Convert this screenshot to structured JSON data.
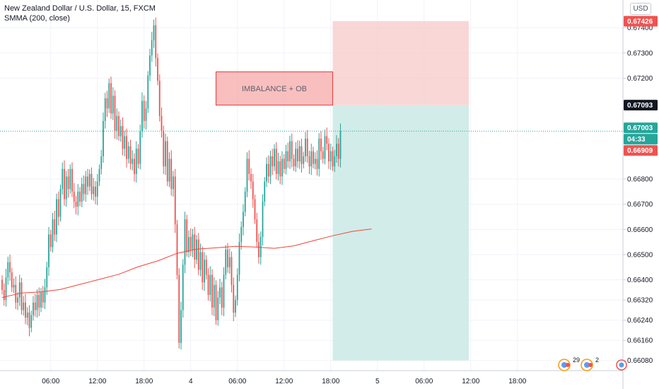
{
  "legend": {
    "symbol_line": "New Zealand Dollar / U.S. Dollar, 15, FXCM",
    "indicator_line": "SMMA (200, close)"
  },
  "unit_button": "USD",
  "colors": {
    "up": "#26a69a",
    "down": "#ef5350",
    "smma": "#f44336",
    "stop_zone": "#f7c9c9",
    "target_zone": "#cdeae7",
    "imbalance_fill": "#f7a9a9",
    "imbalance_border": "#e53935",
    "grid": "#f0f3fa",
    "price_line": "#26a69a"
  },
  "events": [
    {
      "name": "events-group-icon",
      "count": "29"
    },
    {
      "name": "dividend-icon",
      "count": "2"
    }
  ],
  "chart_data": {
    "type": "candlestick",
    "title": "New Zealand Dollar / U.S. Dollar, 15, FXCM",
    "timeframe": "15",
    "ylim": [
      0.6604,
      0.6751
    ],
    "y_ticks": [
      "0.66080",
      "0.66160",
      "0.66240",
      "0.66320",
      "0.66400",
      "0.66500",
      "0.66600",
      "0.66700",
      "0.66800",
      "0.67200",
      "0.67300",
      "0.67400"
    ],
    "x_ticks": [
      "06:00",
      "12:00",
      "18:00",
      "4",
      "06:00",
      "12:00",
      "18:00",
      "5",
      "06:00",
      "12:00",
      "18:00"
    ],
    "x_tick_bar_index": [
      25,
      49,
      73,
      97,
      121,
      145,
      169,
      193,
      217,
      241,
      265
    ],
    "series_close": [
      0.6636,
      0.6632,
      0.6641,
      0.6647,
      0.6643,
      0.6637,
      0.6638,
      0.6631,
      0.6633,
      0.6639,
      0.6628,
      0.6631,
      0.6625,
      0.6627,
      0.6621,
      0.6626,
      0.6631,
      0.6628,
      0.6634,
      0.6629,
      0.6635,
      0.6631,
      0.6637,
      0.6645,
      0.6658,
      0.6653,
      0.6664,
      0.6658,
      0.6672,
      0.6665,
      0.6676,
      0.6684,
      0.6672,
      0.6681,
      0.6676,
      0.6684,
      0.6675,
      0.6671,
      0.6669,
      0.6675,
      0.6671,
      0.6678,
      0.6674,
      0.6681,
      0.6677,
      0.6682,
      0.6674,
      0.6677,
      0.6673,
      0.6679,
      0.6684,
      0.6689,
      0.6703,
      0.6712,
      0.6708,
      0.6718,
      0.6706,
      0.6713,
      0.6699,
      0.6705,
      0.6697,
      0.6701,
      0.6692,
      0.6697,
      0.6688,
      0.6693,
      0.6686,
      0.6688,
      0.6682,
      0.6692,
      0.6686,
      0.6699,
      0.6711,
      0.6703,
      0.6708,
      0.6721,
      0.6729,
      0.6735,
      0.6741,
      0.6728,
      0.6719,
      0.6705,
      0.6699,
      0.6685,
      0.6695,
      0.6679,
      0.6688,
      0.6676,
      0.6681,
      0.6662,
      0.6642,
      0.6615,
      0.6628,
      0.6646,
      0.6664,
      0.6651,
      0.6657,
      0.6652,
      0.6658,
      0.6648,
      0.6656,
      0.6644,
      0.6651,
      0.6639,
      0.6648,
      0.6642,
      0.6634,
      0.6642,
      0.6629,
      0.6638,
      0.6624,
      0.6633,
      0.6637,
      0.6629,
      0.6642,
      0.6652,
      0.6645,
      0.6649,
      0.6638,
      0.6627,
      0.6632,
      0.6642,
      0.6655,
      0.6661,
      0.6667,
      0.6675,
      0.6688,
      0.6682,
      0.6679,
      0.6672,
      0.6664,
      0.6655,
      0.6649,
      0.6657,
      0.6671,
      0.6679,
      0.6686,
      0.6681,
      0.6689,
      0.6685,
      0.6692,
      0.6682,
      0.6687,
      0.6681,
      0.6688,
      0.6684,
      0.6691,
      0.6687,
      0.6695,
      0.6688,
      0.6685,
      0.6692,
      0.6687,
      0.6693,
      0.6686,
      0.6689,
      0.6696,
      0.6689,
      0.6685,
      0.6691,
      0.6686,
      0.6688,
      0.6684,
      0.6696,
      0.6691,
      0.6688,
      0.6697,
      0.6694,
      0.6687,
      0.6691,
      0.6685,
      0.6689,
      0.6694,
      0.6688,
      0.6699
    ],
    "series_open_first": 0.664,
    "smma": {
      "name": "SMMA (200, close)",
      "points": [
        [
          0,
          0.6633
        ],
        [
          10,
          0.66348
        ],
        [
          20,
          0.66352
        ],
        [
          30,
          0.66362
        ],
        [
          40,
          0.66382
        ],
        [
          50,
          0.66402
        ],
        [
          60,
          0.66422
        ],
        [
          70,
          0.66452
        ],
        [
          80,
          0.66475
        ],
        [
          90,
          0.66505
        ],
        [
          100,
          0.66522
        ],
        [
          110,
          0.66527
        ],
        [
          120,
          0.66533
        ],
        [
          130,
          0.6653
        ],
        [
          140,
          0.66525
        ],
        [
          150,
          0.66535
        ],
        [
          160,
          0.66555
        ],
        [
          170,
          0.66575
        ],
        [
          180,
          0.66592
        ],
        [
          190,
          0.66602
        ]
      ]
    },
    "imbalance_zone": {
      "label": "IMBALANCE + OB",
      "top": 0.67225,
      "bottom": 0.67093,
      "from_bar": 110,
      "to_bar": 170
    },
    "position": {
      "entry": 0.67093,
      "target": 0.6608,
      "stop": 0.67426,
      "from_bar": 170,
      "to_bar": 240
    },
    "price_tags": [
      {
        "name": "stop-price-tag",
        "value": "0.67426",
        "color": "#ef5350"
      },
      {
        "name": "entry-price-tag",
        "value": "0.67093",
        "color": "#131722"
      },
      {
        "name": "last-price-tag",
        "value": "0.67003",
        "color": "#26a69a"
      },
      {
        "name": "countdown-tag",
        "value": "04:33",
        "color": "#26a69a"
      },
      {
        "name": "smma-value-tag",
        "value": "0.66909",
        "color": "#ef5350"
      }
    ]
  }
}
